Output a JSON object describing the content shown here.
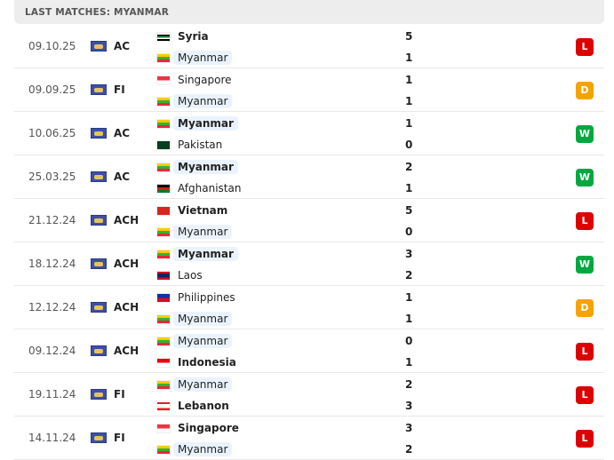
{
  "header": {
    "title": "LAST MATCHES: MYANMAR"
  },
  "result_colors": {
    "L": "#dc0000",
    "D": "#f5a300",
    "W": "#00a83f"
  },
  "flags": {
    "Syria": [
      "#ffffff",
      "#000000",
      "#138d3b",
      "#ffffff",
      "#000000"
    ],
    "Myanmar": [
      "#fecb00",
      "#34b233",
      "#ea2839"
    ],
    "Singapore": [
      "#ef3340",
      "#ffffff"
    ],
    "Pakistan": [
      "#01411c"
    ],
    "Afghanistan": [
      "#000000",
      "#d32011",
      "#007a36"
    ],
    "Vietnam": [
      "#da251d"
    ],
    "Laos": [
      "#ce1126",
      "#002868",
      "#002868",
      "#ce1126"
    ],
    "Philippines": [
      "#0038a8",
      "#ce1126"
    ],
    "Indonesia": [
      "#e70011",
      "#ffffff"
    ],
    "Lebanon": [
      "#ed1c24",
      "#ffffff",
      "#ffffff",
      "#ed1c24"
    ]
  },
  "matches": [
    {
      "date": "09.10.25",
      "competition": "AC",
      "home": "Syria",
      "away": "Myanmar",
      "home_score": "5",
      "away_score": "1",
      "result": "L",
      "winner": "home"
    },
    {
      "date": "09.09.25",
      "competition": "FI",
      "home": "Singapore",
      "away": "Myanmar",
      "home_score": "1",
      "away_score": "1",
      "result": "D",
      "winner": ""
    },
    {
      "date": "10.06.25",
      "competition": "AC",
      "home": "Myanmar",
      "away": "Pakistan",
      "home_score": "1",
      "away_score": "0",
      "result": "W",
      "winner": "home"
    },
    {
      "date": "25.03.25",
      "competition": "AC",
      "home": "Myanmar",
      "away": "Afghanistan",
      "home_score": "2",
      "away_score": "1",
      "result": "W",
      "winner": "home"
    },
    {
      "date": "21.12.24",
      "competition": "ACH",
      "home": "Vietnam",
      "away": "Myanmar",
      "home_score": "5",
      "away_score": "0",
      "result": "L",
      "winner": "home"
    },
    {
      "date": "18.12.24",
      "competition": "ACH",
      "home": "Myanmar",
      "away": "Laos",
      "home_score": "3",
      "away_score": "2",
      "result": "W",
      "winner": "home"
    },
    {
      "date": "12.12.24",
      "competition": "ACH",
      "home": "Philippines",
      "away": "Myanmar",
      "home_score": "1",
      "away_score": "1",
      "result": "D",
      "winner": ""
    },
    {
      "date": "09.12.24",
      "competition": "ACH",
      "home": "Myanmar",
      "away": "Indonesia",
      "home_score": "0",
      "away_score": "1",
      "result": "L",
      "winner": "away"
    },
    {
      "date": "19.11.24",
      "competition": "FI",
      "home": "Myanmar",
      "away": "Lebanon",
      "home_score": "2",
      "away_score": "3",
      "result": "L",
      "winner": "away"
    },
    {
      "date": "14.11.24",
      "competition": "FI",
      "home": "Singapore",
      "away": "Myanmar",
      "home_score": "3",
      "away_score": "2",
      "result": "L",
      "winner": "home"
    }
  ]
}
